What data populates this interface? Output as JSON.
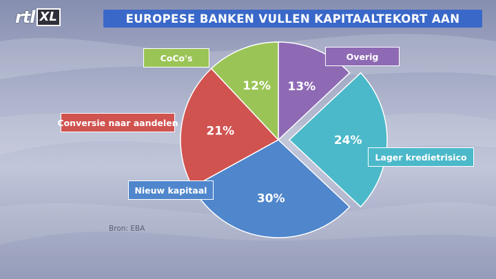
{
  "header": {
    "logo_text": "rtl",
    "logo_badge": "XL",
    "title": "EUROPESE BANKEN VULLEN KAPITAALTEKORT AAN"
  },
  "chart_data": {
    "type": "pie",
    "title": "EUROPESE BANKEN VULLEN KAPITAALTEKORT AAN",
    "start_angle_deg": 0,
    "direction": "clockwise",
    "slices": [
      {
        "label": "Overig",
        "value": 13,
        "value_label": "13%",
        "color": "#8e6ab5",
        "exploded": false
      },
      {
        "label": "Lager kredietrisico",
        "value": 24,
        "value_label": "24%",
        "color": "#4bb9c9",
        "exploded": true
      },
      {
        "label": "Nieuw kapitaal",
        "value": 30,
        "value_label": "30%",
        "color": "#4f86cc",
        "exploded": false
      },
      {
        "label": "Conversie naar aandelen",
        "value": 21,
        "value_label": "21%",
        "color": "#d05350",
        "exploded": false
      },
      {
        "label": "CoCo's",
        "value": 12,
        "value_label": "12%",
        "color": "#9bc456",
        "exploded": false
      }
    ]
  },
  "footer": {
    "source": "Bron: EBA"
  }
}
